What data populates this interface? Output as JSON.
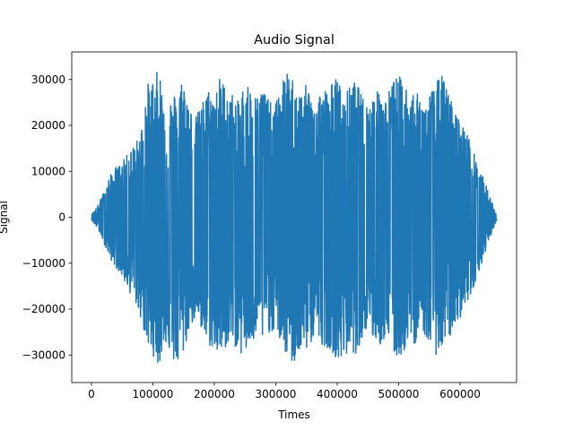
{
  "chart_data": {
    "type": "line",
    "title": "Audio Signal",
    "xlabel": "Times",
    "ylabel": "Signal",
    "xlim": [
      -32000,
      692000
    ],
    "ylim": [
      -36000,
      36000
    ],
    "x_ticks": [
      0,
      100000,
      200000,
      300000,
      400000,
      500000,
      600000
    ],
    "x_tick_labels": [
      "0",
      "100000",
      "200000",
      "300000",
      "400000",
      "500000",
      "600000"
    ],
    "y_ticks": [
      -30000,
      -20000,
      -10000,
      0,
      10000,
      20000,
      30000
    ],
    "y_tick_labels": [
      "−30000",
      "−20000",
      "−10000",
      "0",
      "10000",
      "20000",
      "30000"
    ],
    "grid": false,
    "series": [
      {
        "color": "#1f77b4",
        "n_samples": 660000,
        "envelope": {
          "x": [
            0,
            10000,
            20000,
            30000,
            40000,
            50000,
            60000,
            70000,
            80000,
            90000,
            100000,
            110000,
            120000,
            130000,
            140000,
            150000,
            160000,
            170000,
            180000,
            190000,
            200000,
            210000,
            220000,
            230000,
            240000,
            250000,
            260000,
            270000,
            280000,
            290000,
            300000,
            310000,
            320000,
            330000,
            340000,
            350000,
            360000,
            370000,
            380000,
            390000,
            400000,
            410000,
            420000,
            430000,
            440000,
            450000,
            460000,
            470000,
            480000,
            490000,
            500000,
            510000,
            520000,
            530000,
            540000,
            550000,
            560000,
            570000,
            580000,
            590000,
            600000,
            610000,
            620000,
            630000,
            640000,
            650000,
            660000
          ],
          "y_max": [
            500,
            2500,
            5500,
            9000,
            11000,
            12000,
            14000,
            16000,
            18000,
            29000,
            30000,
            32500,
            25000,
            26000,
            28000,
            31000,
            24000,
            22000,
            25000,
            28000,
            27000,
            31000,
            28000,
            27000,
            25000,
            30500,
            28000,
            26500,
            29000,
            25000,
            25000,
            30000,
            31500,
            30000,
            27000,
            29000,
            26500,
            27500,
            28000,
            29000,
            31000,
            26000,
            28500,
            30000,
            26500,
            25000,
            27000,
            28000,
            26000,
            30000,
            31000,
            29000,
            28500,
            27000,
            25000,
            27000,
            29000,
            31500,
            27500,
            24000,
            21000,
            19000,
            15000,
            11000,
            8000,
            4000,
            500
          ],
          "y_min": [
            -500,
            -2500,
            -5500,
            -9000,
            -11000,
            -13000,
            -16000,
            -18000,
            -22000,
            -28000,
            -30000,
            -32500,
            -27000,
            -31000,
            -32500,
            -30000,
            -24000,
            -22000,
            -26000,
            -28000,
            -29000,
            -31000,
            -28000,
            -27000,
            -30000,
            -30000,
            -28000,
            -26500,
            -27000,
            -25000,
            -25000,
            -28000,
            -31500,
            -32000,
            -30000,
            -29000,
            -27000,
            -27500,
            -28000,
            -29000,
            -31000,
            -32000,
            -28500,
            -30000,
            -26500,
            -25000,
            -27000,
            -28000,
            -26000,
            -30000,
            -31000,
            -29000,
            -28500,
            -27000,
            -25000,
            -28000,
            -30000,
            -29000,
            -27500,
            -24000,
            -22000,
            -19000,
            -16000,
            -12000,
            -8000,
            -4000,
            -500
          ]
        }
      }
    ]
  }
}
